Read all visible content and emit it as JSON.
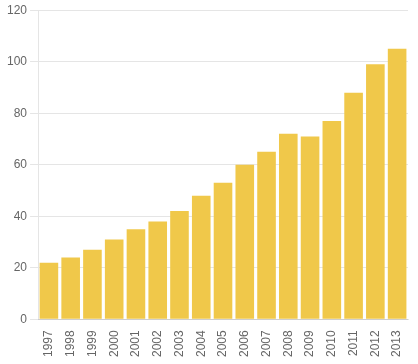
{
  "chart_data": {
    "type": "bar",
    "categories": [
      "1997",
      "1998",
      "1999",
      "2000",
      "2001",
      "2002",
      "2003",
      "2004",
      "2005",
      "2006",
      "2007",
      "2008",
      "2009",
      "2010",
      "2011",
      "2012",
      "2013"
    ],
    "values": [
      22,
      24,
      27,
      31,
      35,
      38,
      42,
      48,
      53,
      60,
      65,
      72,
      71,
      77,
      88,
      99,
      105
    ],
    "color": "#F0C84A",
    "ylim": [
      0,
      120
    ],
    "yticks": [
      0,
      20,
      40,
      60,
      80,
      100,
      120
    ],
    "grid": true
  }
}
